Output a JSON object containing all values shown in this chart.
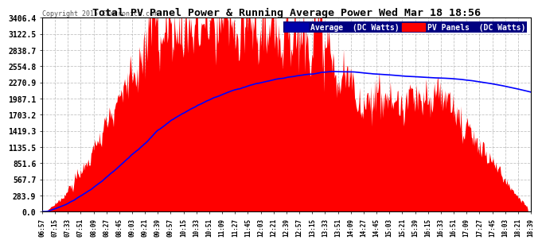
{
  "title": "Total PV Panel Power & Running Average Power Wed Mar 18 18:56",
  "copyright": "Copyright 2015 Cartronics.com",
  "legend_avg": "Average  (DC Watts)",
  "legend_pv": "PV Panels  (DC Watts)",
  "ymax": 3406.4,
  "ymin": 0.0,
  "yticks": [
    0.0,
    283.9,
    567.7,
    851.6,
    1135.5,
    1419.3,
    1703.2,
    1987.1,
    2270.9,
    2554.8,
    2838.7,
    3122.5,
    3406.4
  ],
  "xtick_labels": [
    "06:57",
    "07:15",
    "07:33",
    "07:51",
    "08:09",
    "08:27",
    "08:45",
    "09:03",
    "09:21",
    "09:39",
    "09:57",
    "10:15",
    "10:33",
    "10:51",
    "11:09",
    "11:27",
    "11:45",
    "12:03",
    "12:21",
    "12:39",
    "12:57",
    "13:15",
    "13:33",
    "13:51",
    "14:09",
    "14:27",
    "14:45",
    "15:03",
    "15:21",
    "15:39",
    "16:15",
    "16:33",
    "16:51",
    "17:09",
    "17:27",
    "17:45",
    "18:03",
    "18:21",
    "18:39"
  ],
  "bg_color": "#ffffff",
  "grid_color": "#aaaaaa",
  "fill_color": "#ff0000",
  "line_color": "#0000ff",
  "title_color": "#000000",
  "legend_avg_bg": "#0000aa",
  "legend_pv_bg": "#ff0000",
  "legend_text_color": "#ffffff"
}
